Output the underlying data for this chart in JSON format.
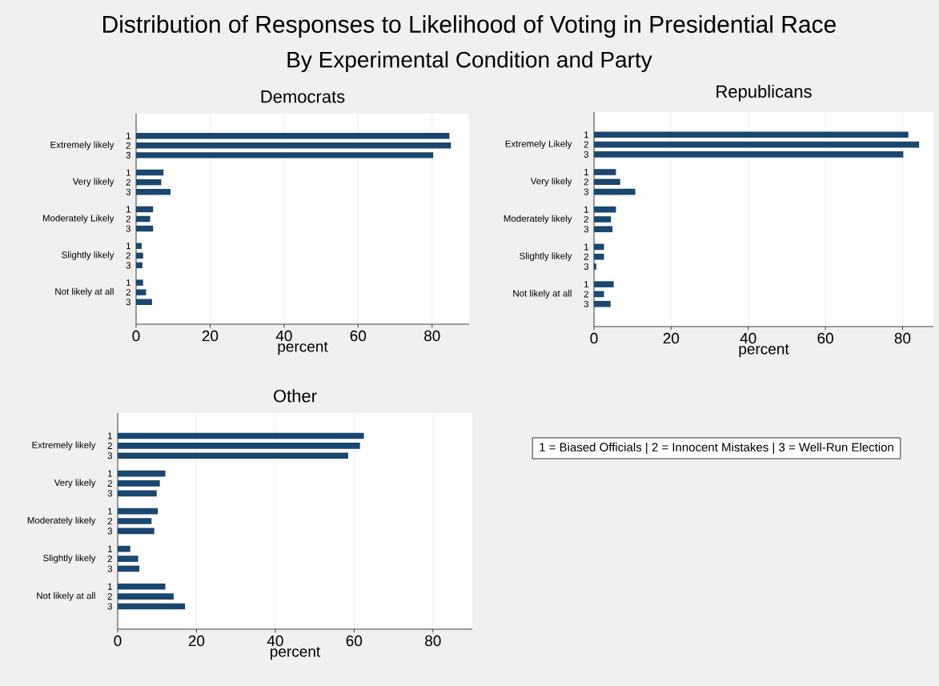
{
  "chart_data": [
    {
      "type": "other",
      "title": "Distribution of Responses to Likelihood of Voting in Presidential Race",
      "subtitle": "By Experimental Condition and Party"
    },
    {
      "type": "bar",
      "orientation": "horizontal",
      "title": "Democrats",
      "xlabel": "percent",
      "categories": [
        "Extremely likely",
        "Very likely",
        "Moderately Likely",
        "Slightly likely",
        "Not likely at all"
      ],
      "xlim": [
        0,
        90
      ],
      "xticks": [
        0,
        20,
        40,
        60,
        80
      ],
      "grid": "x",
      "series": [
        {
          "name": "1",
          "color": "#1a476f",
          "values": [
            84.7,
            7.4,
            4.6,
            1.5,
            1.9
          ]
        },
        {
          "name": "2",
          "color": "#1a476f",
          "values": [
            85.1,
            6.8,
            3.8,
            1.9,
            2.7
          ]
        },
        {
          "name": "3",
          "color": "#1a476f",
          "values": [
            80.3,
            9.3,
            4.6,
            1.7,
            4.3
          ]
        }
      ]
    },
    {
      "type": "bar",
      "orientation": "horizontal",
      "title": "Republicans",
      "xlabel": "percent",
      "categories": [
        "Extremely Likely",
        "Very likely",
        "Moderately likely",
        "Slightly likely",
        "Not likely at all"
      ],
      "xlim": [
        0,
        88
      ],
      "xticks": [
        0,
        20,
        40,
        60,
        80
      ],
      "grid": "x",
      "series": [
        {
          "name": "1",
          "color": "#1a476f",
          "values": [
            81.5,
            5.7,
            5.7,
            2.6,
            5.1
          ]
        },
        {
          "name": "2",
          "color": "#1a476f",
          "values": [
            84.3,
            6.8,
            4.4,
            2.6,
            2.6
          ]
        },
        {
          "name": "3",
          "color": "#1a476f",
          "values": [
            80.2,
            10.7,
            4.8,
            0.6,
            4.3
          ]
        }
      ]
    },
    {
      "type": "bar",
      "orientation": "horizontal",
      "title": "Other",
      "xlabel": "percent",
      "categories": [
        "Extremely likely",
        "Very likely",
        "Moderately likely",
        "Slightly likely",
        "Not likely at all"
      ],
      "xlim": [
        0,
        90
      ],
      "xticks": [
        0,
        20,
        40,
        60,
        80
      ],
      "grid": "x",
      "series": [
        {
          "name": "1",
          "color": "#1a476f",
          "values": [
            62.5,
            12.1,
            10.2,
            3.2,
            12.1
          ]
        },
        {
          "name": "2",
          "color": "#1a476f",
          "values": [
            61.5,
            10.7,
            8.6,
            5.2,
            14.2
          ]
        },
        {
          "name": "3",
          "color": "#1a476f",
          "values": [
            58.5,
            9.9,
            9.3,
            5.5,
            17.1
          ]
        }
      ]
    },
    {
      "type": "other",
      "annotations": [
        "1 = Biased Officials | 2 = Innocent Mistakes | 3 = Well-Run Election"
      ]
    }
  ]
}
